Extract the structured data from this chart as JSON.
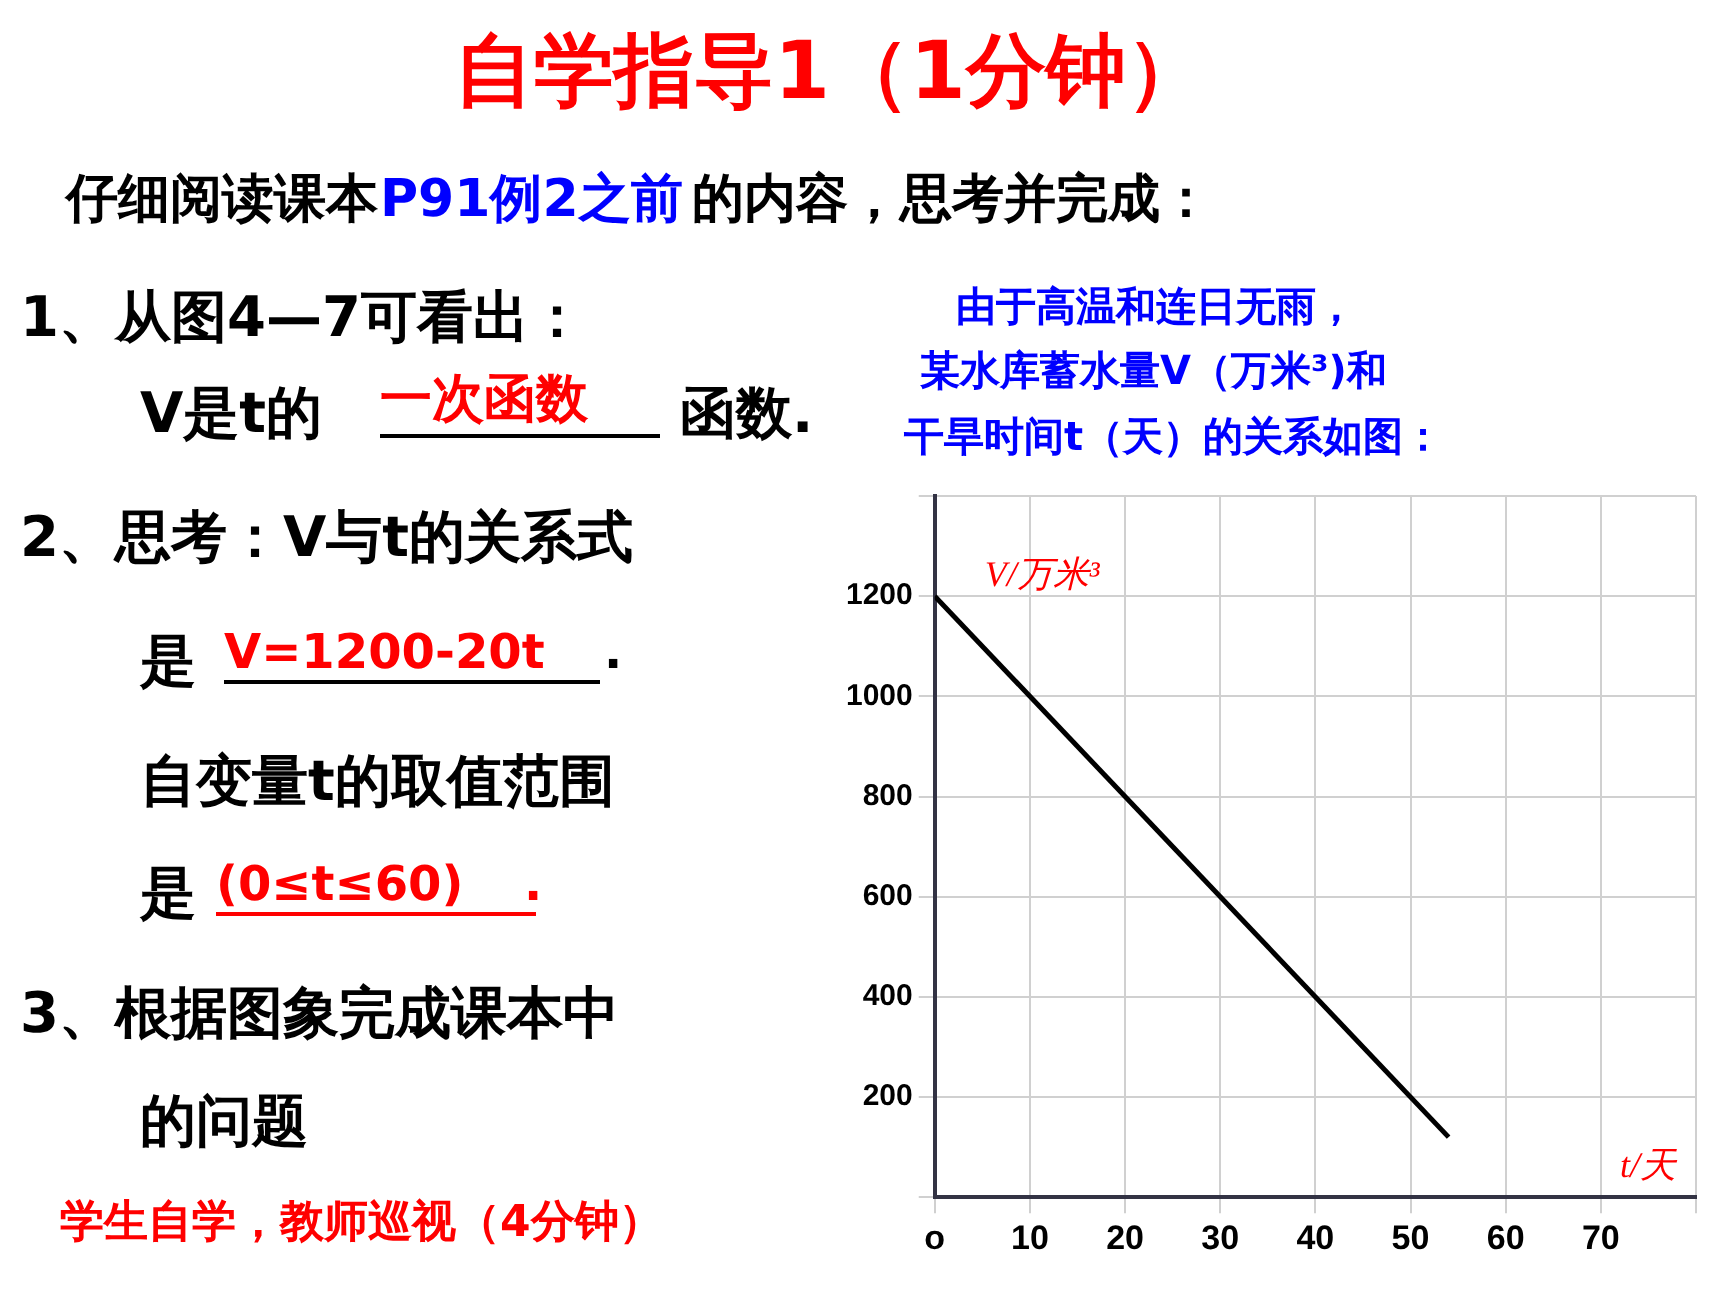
{
  "chart_data": {
    "type": "line",
    "title": "自学指导1（1分钟）",
    "xlabel": "t/天",
    "ylabel": "V/万米³",
    "x": [
      0,
      54
    ],
    "series": [
      {
        "color": "#000000",
        "values": [
          1200,
          120
        ]
      }
    ],
    "xlim": [
      0,
      80
    ],
    "ylim": [
      0,
      1400
    ],
    "xticks": [
      {
        "value": 0,
        "label": "o"
      },
      10,
      20,
      30,
      40,
      50,
      60,
      70,
      {
        "value": 80,
        "label": null
      }
    ],
    "yticks": [
      {
        "value": 0,
        "label": null
      },
      200,
      400,
      600,
      800,
      1000,
      1200,
      {
        "value": 1400,
        "label": null
      }
    ],
    "grid": true,
    "marker": "none",
    "line_style": "solid",
    "annotations": [
      "仔细阅读课本",
      "P91例2之前",
      "的内容，思考并完成：",
      "1、从图4—7可看出：",
      "V是t的",
      "一次函数",
      "函数.",
      "2、思考：V与t的关系式",
      "是",
      "V=1200-20t",
      ".",
      "自变量t的取值范围",
      "是",
      "(0≤t≤60)",
      ".",
      "3、根据图象完成课本中",
      "的问题",
      "学生自学，教师巡视（4分钟）",
      "由于高温和连日无雨，",
      "某水库蓄水量V（万米³)和",
      "干旱时间t（天）的关系如图："
    ]
  }
}
